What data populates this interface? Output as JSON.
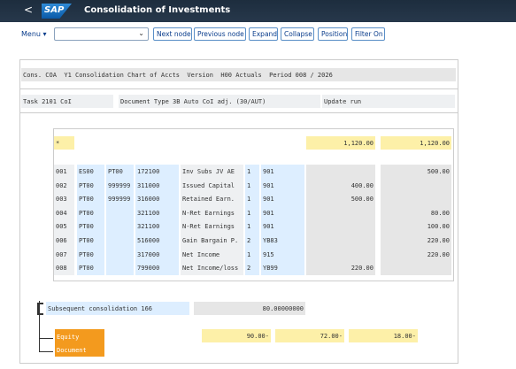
{
  "header": {
    "title": "Consolidation of Investments",
    "logo": "SAP",
    "back": "<"
  },
  "toolbar": {
    "menu": "Menu ▾",
    "buttons": [
      "Next node",
      "Previous node",
      "Expand",
      "Collapse",
      "Position",
      "Filter On"
    ]
  },
  "info": {
    "line1": "Cons. COA  Y1 Consolidation Chart of Accts  Version  H00 Actuals  Period 008 / 2026",
    "task": "Task 2101 CoI",
    "doc_type": "Document Type 3B Auto CoI adj. (30/AUT)",
    "update": "Update run"
  },
  "table": {
    "total": {
      "key": "*",
      "value1": "1,120.00",
      "value2": "1,120.00"
    },
    "rows": [
      [
        "001",
        "ES00",
        "PT00",
        "172100",
        "Inv Subs JV AE",
        "1",
        "901",
        "",
        "500.00"
      ],
      [
        "002",
        "PT00",
        "999999",
        "311000",
        "Issued Capital",
        "1",
        "901",
        "400.00",
        ""
      ],
      [
        "003",
        "PT00",
        "999999",
        "316000",
        "Retained Earn.",
        "1",
        "901",
        "500.00",
        ""
      ],
      [
        "004",
        "PT00",
        "",
        "321100",
        "N-Ret Earnings",
        "1",
        "901",
        "",
        "80.00"
      ],
      [
        "005",
        "PT00",
        "",
        "321100",
        "N-Ret Earnings",
        "1",
        "901",
        "",
        "100.00"
      ],
      [
        "006",
        "PT00",
        "",
        "516000",
        "Gain Bargain P.",
        "2",
        "YB83",
        "",
        "220.00"
      ],
      [
        "007",
        "PT00",
        "",
        "317000",
        "Net Income",
        "1",
        "915",
        "",
        "220.00"
      ],
      [
        "008",
        "PT00",
        "",
        "799000",
        "Net Income/loss",
        "2",
        "YB99",
        "220.00",
        ""
      ]
    ]
  },
  "tree": {
    "node": "Subsequent consolidation 166",
    "node_value": "80.00000000",
    "equity": "Equity",
    "document": "Document",
    "values": [
      "90.00-",
      "72.00-",
      "18.00-"
    ]
  }
}
